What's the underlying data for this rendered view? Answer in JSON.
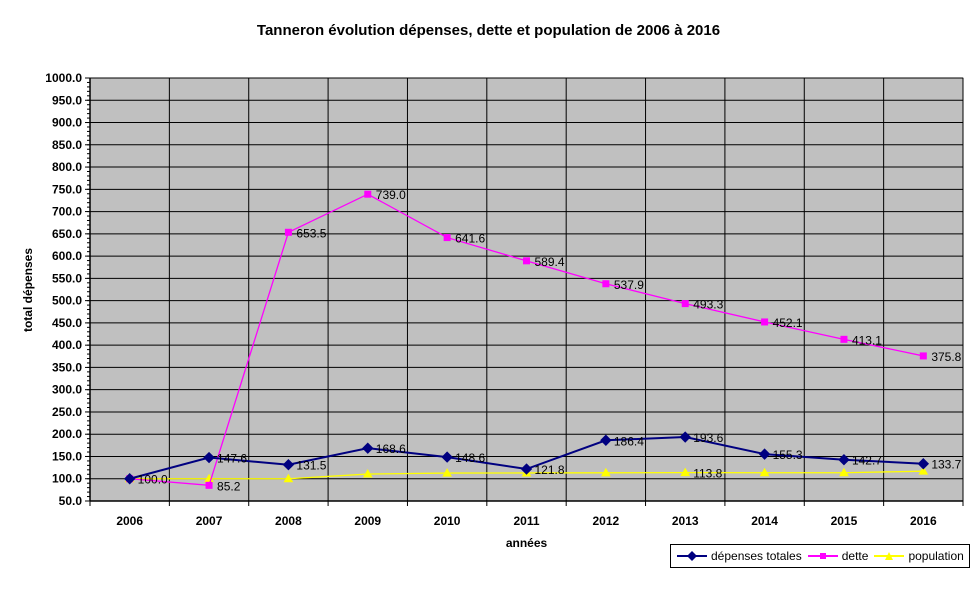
{
  "chart_data": {
    "type": "line",
    "title": "Tanneron évolution dépenses, dette et population de 2006 à 2016",
    "xlabel": "années",
    "ylabel": "total dépenses",
    "categories": [
      "2006",
      "2007",
      "2008",
      "2009",
      "2010",
      "2011",
      "2012",
      "2013",
      "2014",
      "2015",
      "2016"
    ],
    "ylim": [
      50,
      1000
    ],
    "ytick_step": 50,
    "grid": true,
    "legend_position": "bottom-right",
    "plot_background": "#c0c0c0",
    "series": [
      {
        "name": "dépenses totales",
        "color": "#000080",
        "marker": "diamond",
        "values": [
          100.0,
          147.6,
          131.5,
          168.6,
          148.6,
          121.8,
          186.4,
          193.6,
          155.3,
          142.7,
          133.7
        ],
        "labels": [
          "100.0",
          "147.6",
          "131.5",
          "168.6",
          "148.6",
          "121.8",
          "186.4",
          "193.6",
          "155.3",
          "142.7",
          "133.7"
        ]
      },
      {
        "name": "dette",
        "color": "#ff00ff",
        "marker": "square",
        "values": [
          100.0,
          85.2,
          653.5,
          739.0,
          641.6,
          589.4,
          537.9,
          493.3,
          452.1,
          413.1,
          375.8
        ],
        "labels": [
          "",
          "85.2",
          "653.5",
          "739.0",
          "641.6",
          "589.4",
          "537.9",
          "493.3",
          "452.1",
          "413.1",
          "375.8"
        ]
      },
      {
        "name": "population",
        "color": "#ffff00",
        "marker": "triangle",
        "values": [
          100.0,
          100.0,
          100.0,
          110.5,
          112.7,
          113.0,
          113.3,
          113.8,
          113.5,
          113.5,
          117.0
        ],
        "labels": [
          "",
          "",
          "",
          "",
          "",
          "",
          "",
          "113.8",
          "",
          "",
          ""
        ]
      }
    ]
  }
}
